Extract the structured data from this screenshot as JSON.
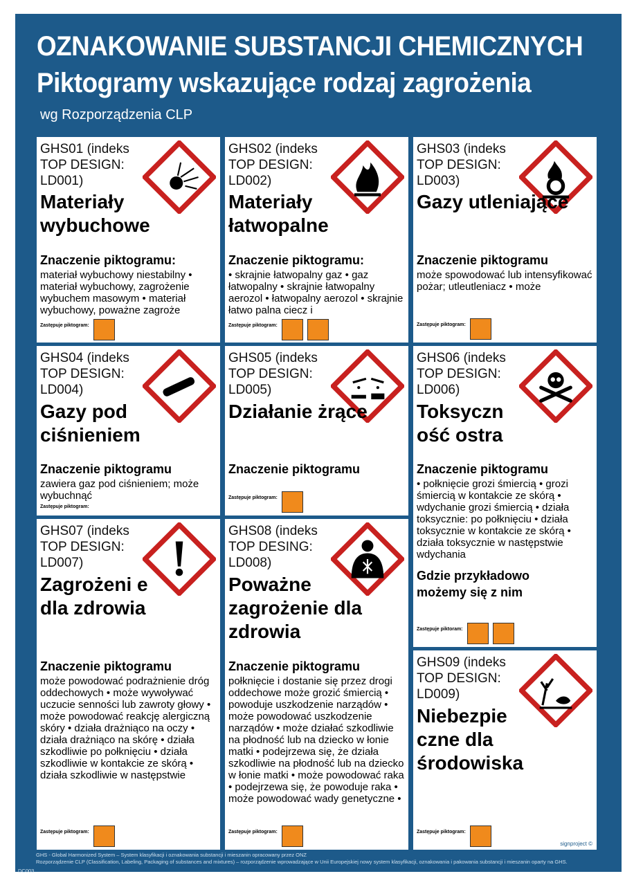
{
  "header": {
    "title1": "OZNAKOWANIE SUBSTANCJI CHEMICZNYCH",
    "title2": "Piktogramy wskazujące rodzaj zagrożenia",
    "subtitle": "wg Rozporządzenia CLP"
  },
  "colors": {
    "frame": "#1d5a8a",
    "diamond_border": "#c8211f",
    "old_pictogram": "#f08a1c"
  },
  "cards": [
    {
      "code": "GHS01 (indeks TOP DESIGN: LD001)",
      "title": "Materiały wybuchowe",
      "meaning_heading": "Znaczenie piktogramu:",
      "body": "materiał wybuchowy niestabilny • materiał wybuchowy, zagrożenie wybuchem masowym • materiał wybuchowy, poważne zagroże",
      "replaces": "Zastępuje piktogram:",
      "icon": "exploding-bomb-icon",
      "old_icons": [
        "old-explosive-icon"
      ]
    },
    {
      "code": "GHS02 (indeks TOP DESIGN: LD002)",
      "title": "Materiały łatwopalne",
      "meaning_heading": "Znaczenie piktogramu:",
      "body": "• skrajnie łatwopalny gaz • gaz łatwopalny • skrajnie łatwopalny aerozol • łatwopalny aerozol • skrajnie łatwo palna ciecz i",
      "replaces": "Zastępuje piktogram:",
      "icon": "flame-icon",
      "old_icons": [
        "old-flammable-icon",
        "old-extremely-flammable-icon"
      ]
    },
    {
      "code": "GHS03 (indeks TOP DESIGN: LD003)",
      "title": "Gazy utleniające",
      "meaning_heading": "Znaczenie piktogramu",
      "body": "może spowodować lub intensyfikować pożar; utleutleniacz • może",
      "replaces": "Zastępuje piktogram:",
      "icon": "flame-over-circle-icon",
      "old_icons": [
        "old-oxidizing-icon"
      ]
    },
    {
      "code": "GHS04 (indeks TOP DESIGN: LD004)",
      "title": "Gazy pod ciśnieniem",
      "meaning_heading": "Znaczenie piktogramu",
      "body": "zawiera gaz pod ciśnieniem; może wybuchnąć",
      "replaces": "Zastępuje piktogram:",
      "icon": "gas-cylinder-icon",
      "old_icons": []
    },
    {
      "code": "GHS05 (indeks TOP DESIGN: LD005)",
      "title": "Działanie żrące",
      "meaning_heading": "Znaczenie piktogramu",
      "body": "",
      "replaces": "Zastępuje piktogram:",
      "icon": "corrosion-icon",
      "old_icons": [
        "old-corrosive-icon"
      ]
    },
    {
      "code": "GHS06 (indeks TOP DESIGN: LD006)",
      "title": "Toksyczn ość ostra",
      "meaning_heading": "Znaczenie piktogramu",
      "body": "• połknięcie grozi śmiercią • grozi śmiercią w kontakcie ze skórą • wdychanie grozi śmiercią • działa toksycznie: po połknięciu • działa toksycznie w kontakcie ze skórą • działa toksycznie w następstwie wdychania",
      "extra": "Gdzie przykładowo możemy się z nim",
      "replaces": "Zastępuje piktoram:",
      "icon": "skull-crossbones-icon",
      "old_icons": [
        "old-toxic-icon",
        "old-very-toxic-icon"
      ]
    },
    {
      "code": "GHS07 (indeks TOP DESIGN: LD007)",
      "title": "Zagrożeni e dla zdrowia",
      "meaning_heading": "Znaczenie piktogramu",
      "body": "może powodować podrażnienie dróg oddechowych • może wywoływać uczucie senności lub zawroty głowy • może powodować reakcję alergiczną skóry • działa drażniąco na oczy • działa drażniąco na skórę • działa szkodliwie po połknięciu • działa szkodliwie w kontakcie ze skórą • działa szkodliwie w następstwie",
      "replaces": "Zastępuje piktogram:",
      "icon": "exclamation-mark-icon",
      "old_icons": [
        "old-irritant-icon"
      ]
    },
    {
      "code": "GHS08 (indeks TOP DESING: LD008)",
      "title": "Poważne zagrożenie dla zdrowia",
      "meaning_heading": "Znaczenie piktogramu",
      "body": "połknięcie i dostanie się przez drogi oddechowe może grozić śmiercią • powoduje uszkodzenie narządów • może powodować uszkodzenie narządów • może działać szkodliwie na płodność lub na dziecko w łonie matki • podejrzewa się, że działa szkodliwie na płodność lub na dziecko w łonie matki • może powodować raka • podejrzewa się, że powoduje raka • może powodować wady genetyczne •",
      "replaces": "Zastępuje piktogram:",
      "icon": "health-hazard-icon",
      "old_icons": [
        "old-harmful-icon"
      ]
    },
    {
      "code": "GHS09 (indeks TOP DESIGN: LD009)",
      "title": "Niebezpie czne dla środowiska",
      "meaning_heading": "",
      "body": "",
      "replaces": "Zastępuje piktogram:",
      "icon": "environment-icon",
      "old_icons": [
        "old-environment-icon"
      ],
      "signature": "signproject ©"
    }
  ],
  "footer": {
    "line1": "GHS - Global Harmonized System – System klasyfikacji i oznakowania substancji i mieszanin opracowany przez ONZ",
    "line2": "Rozporządzenie CLP (Classification, Labeling, Packaging of substances and mixtures) – rozporządzenie wprowadzające w Unii Europejskiej nowy system klasyfikacji, oznakowania i pakowania substancji i mieszanin oparty na GHS.",
    "code": "DC003"
  }
}
